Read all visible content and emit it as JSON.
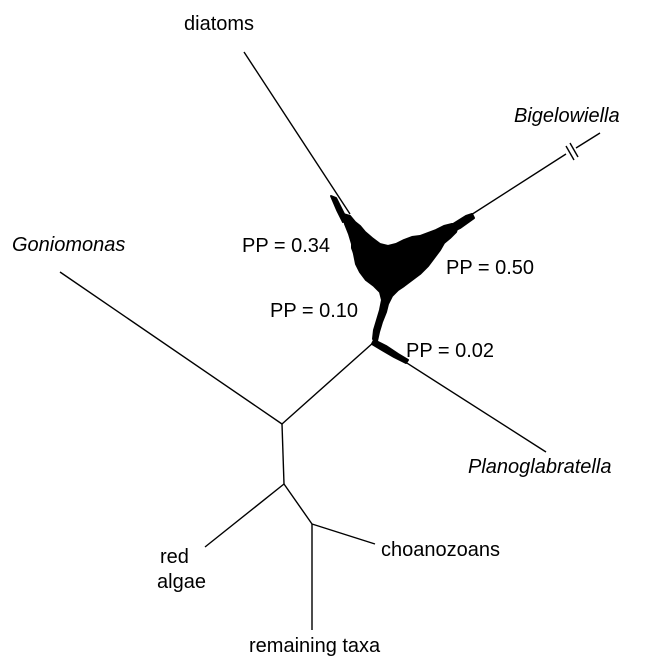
{
  "taxa": {
    "diatoms": "diatoms",
    "bigelowiella": "Bigelowiella",
    "goniomonas": "Goniomonas",
    "planoglabratella": "Planoglabratella",
    "choanozoans": "choanozoans",
    "red_algae_line1": "red",
    "red_algae_line2": "algae",
    "remaining_taxa": "remaining taxa"
  },
  "support_values": {
    "pp_034": "PP = 0.34",
    "pp_050": "PP = 0.50",
    "pp_010": "PP = 0.10",
    "pp_002": "PP = 0.02"
  },
  "colors": {
    "tree": "#000000",
    "background": "#ffffff"
  }
}
